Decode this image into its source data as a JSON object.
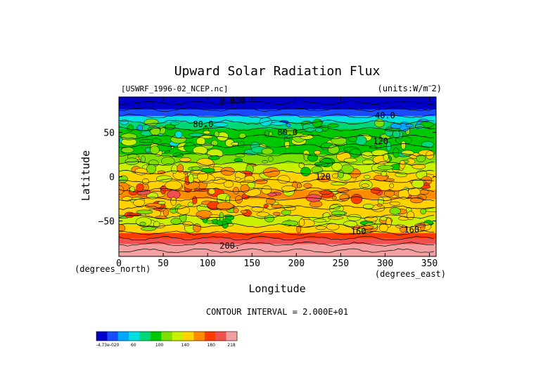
{
  "chart_data": {
    "type": "heatmap",
    "title": "Upward Solar Radiation Flux",
    "dataset": "[USWRF_1996-02_NCEP.nc]",
    "units": "(units:W/m^-2)",
    "xlabel": "Longitude",
    "ylabel": "Latitude",
    "x_unit_label": "(degrees_east)",
    "y_unit_label": "(degrees_north)",
    "xlim": [
      0,
      357.5
    ],
    "ylim": [
      -90,
      90
    ],
    "xticks": [
      "0",
      "50",
      "100",
      "150",
      "200",
      "250",
      "300",
      "350"
    ],
    "yticks": [
      "50",
      "0",
      "−50"
    ],
    "contour_interval_text": "CONTOUR INTERVAL = 2.000E+01",
    "contour_labels": [
      "0.000",
      "40.0",
      "80.0",
      "80.0",
      "120",
      "120",
      "160",
      "160",
      "200."
    ],
    "colorbar": {
      "colors": [
        "#0000c8",
        "#1a4cff",
        "#00a8ff",
        "#00e0e0",
        "#00d878",
        "#00c800",
        "#7ee000",
        "#c8f000",
        "#ffd200",
        "#ff8c00",
        "#ff3c00",
        "#f05050",
        "#f5a0a0"
      ],
      "labels": [
        "-4.73e-020",
        "60",
        "100",
        "140",
        "180",
        "218"
      ]
    },
    "latitude_band_means": [
      {
        "lat": 87,
        "value": 0
      },
      {
        "lat": 80,
        "value": 10
      },
      {
        "lat": 72,
        "value": 30
      },
      {
        "lat": 65,
        "value": 55
      },
      {
        "lat": 58,
        "value": 70
      },
      {
        "lat": 50,
        "value": 85
      },
      {
        "lat": 40,
        "value": 95
      },
      {
        "lat": 30,
        "value": 100
      },
      {
        "lat": 20,
        "value": 110
      },
      {
        "lat": 10,
        "value": 125
      },
      {
        "lat": 0,
        "value": 140
      },
      {
        "lat": -10,
        "value": 150
      },
      {
        "lat": -20,
        "value": 155
      },
      {
        "lat": -30,
        "value": 150
      },
      {
        "lat": -40,
        "value": 135
      },
      {
        "lat": -50,
        "value": 125
      },
      {
        "lat": -60,
        "value": 140
      },
      {
        "lat": -67,
        "value": 170
      },
      {
        "lat": -72,
        "value": 190
      },
      {
        "lat": -80,
        "value": 210
      },
      {
        "lat": -87,
        "value": 218
      }
    ]
  }
}
